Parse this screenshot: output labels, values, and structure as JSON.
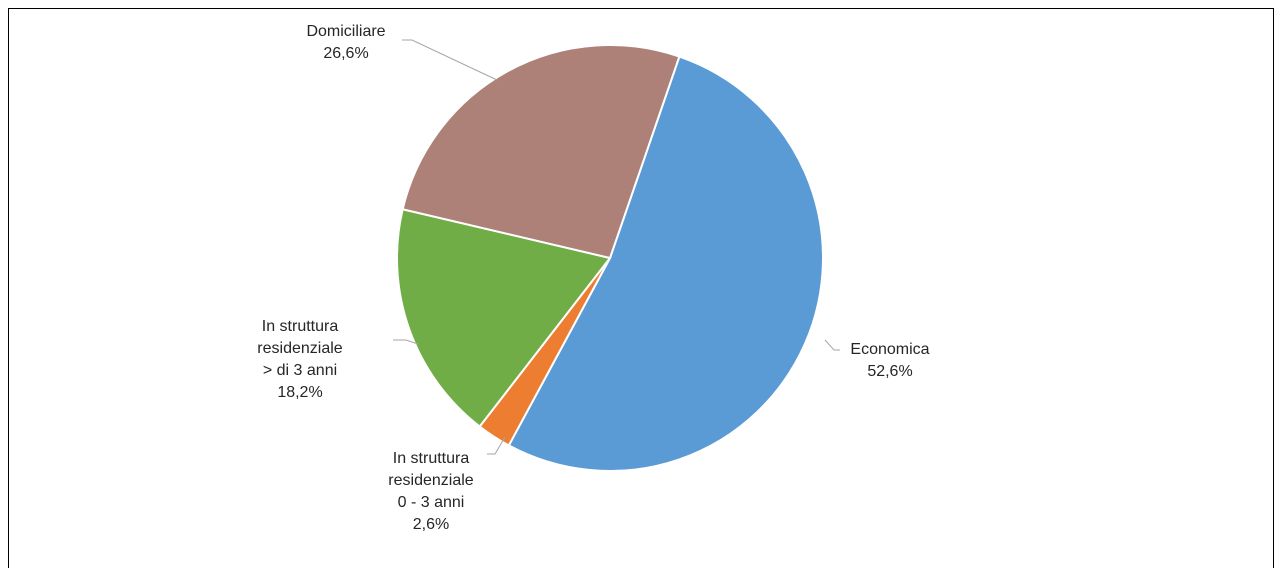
{
  "chart_data": {
    "type": "pie",
    "title": "",
    "slices": [
      {
        "label_lines": [
          "Economica"
        ],
        "value_label": "52,6%",
        "value": 52.6,
        "color": "#5b9bd5"
      },
      {
        "label_lines": [
          "In struttura",
          "residenziale",
          "0 - 3 anni"
        ],
        "value_label": "2,6%",
        "value": 2.6,
        "color": "#ed7d31"
      },
      {
        "label_lines": [
          "In struttura",
          "residenziale",
          "> di 3 anni"
        ],
        "value_label": "18,2%",
        "value": 18.2,
        "color": "#70ad47"
      },
      {
        "label_lines": [
          "Domiciliare"
        ],
        "value_label": "26,6%",
        "value": 26.6,
        "color": "#ad8078"
      }
    ]
  }
}
